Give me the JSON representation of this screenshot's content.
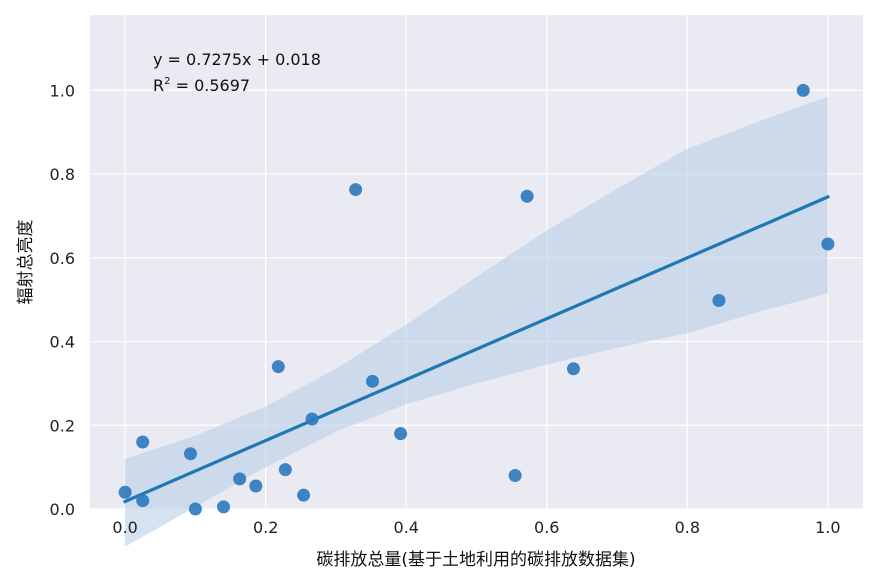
{
  "chart_data": {
    "type": "scatter",
    "title": "",
    "xlabel": "碳排放总量(基于土地利用的碳排放数据集)",
    "ylabel": "辐射总亮度",
    "xlim": [
      -0.05,
      1.05
    ],
    "ylim": [
      0.0,
      1.18
    ],
    "xticks": [
      0.0,
      0.2,
      0.4,
      0.6,
      0.8,
      1.0
    ],
    "xtick_labels": [
      "0.0",
      "0.2",
      "0.4",
      "0.6",
      "0.8",
      "1.0"
    ],
    "yticks": [
      0.0,
      0.2,
      0.4,
      0.6,
      0.8,
      1.0
    ],
    "ytick_labels": [
      "0.0",
      "0.2",
      "0.4",
      "0.6",
      "0.8",
      "1.0"
    ],
    "grid": true,
    "background": "#eaeaf2",
    "point_color": "#2f7bbf",
    "line_color": "#1f77b4",
    "band_color": "#b9cfe6",
    "points": [
      {
        "x": 0.0,
        "y": 0.04
      },
      {
        "x": 0.025,
        "y": 0.02
      },
      {
        "x": 0.025,
        "y": 0.16
      },
      {
        "x": 0.093,
        "y": 0.132
      },
      {
        "x": 0.1,
        "y": 0.0
      },
      {
        "x": 0.14,
        "y": 0.005
      },
      {
        "x": 0.163,
        "y": 0.072
      },
      {
        "x": 0.186,
        "y": 0.055
      },
      {
        "x": 0.218,
        "y": 0.34
      },
      {
        "x": 0.228,
        "y": 0.094
      },
      {
        "x": 0.254,
        "y": 0.033
      },
      {
        "x": 0.266,
        "y": 0.215
      },
      {
        "x": 0.328,
        "y": 0.763
      },
      {
        "x": 0.352,
        "y": 0.305
      },
      {
        "x": 0.392,
        "y": 0.18
      },
      {
        "x": 0.555,
        "y": 0.08
      },
      {
        "x": 0.572,
        "y": 0.747
      },
      {
        "x": 0.638,
        "y": 0.335
      },
      {
        "x": 0.845,
        "y": 0.498
      },
      {
        "x": 0.965,
        "y": 1.0
      },
      {
        "x": 1.0,
        "y": 0.633
      }
    ],
    "regression": {
      "slope": 0.7275,
      "intercept": 0.018,
      "x_range": [
        0.0,
        1.0
      ],
      "ci_band": [
        {
          "x": 0.0,
          "low": -0.09,
          "high": 0.12
        },
        {
          "x": 0.1,
          "low": 0.005,
          "high": 0.175
        },
        {
          "x": 0.2,
          "low": 0.1,
          "high": 0.245
        },
        {
          "x": 0.3,
          "low": 0.185,
          "high": 0.335
        },
        {
          "x": 0.4,
          "low": 0.25,
          "high": 0.44
        },
        {
          "x": 0.5,
          "low": 0.3,
          "high": 0.555
        },
        {
          "x": 0.6,
          "low": 0.345,
          "high": 0.665
        },
        {
          "x": 0.7,
          "low": 0.385,
          "high": 0.765
        },
        {
          "x": 0.8,
          "low": 0.42,
          "high": 0.86
        },
        {
          "x": 0.9,
          "low": 0.47,
          "high": 0.925
        },
        {
          "x": 1.0,
          "low": 0.515,
          "high": 0.985
        }
      ]
    },
    "annotations": [
      {
        "text": "y = 0.7275x + 0.018"
      },
      {
        "text_prefix": "R",
        "superscript": "2",
        "text_suffix": " = 0.5697"
      }
    ]
  }
}
